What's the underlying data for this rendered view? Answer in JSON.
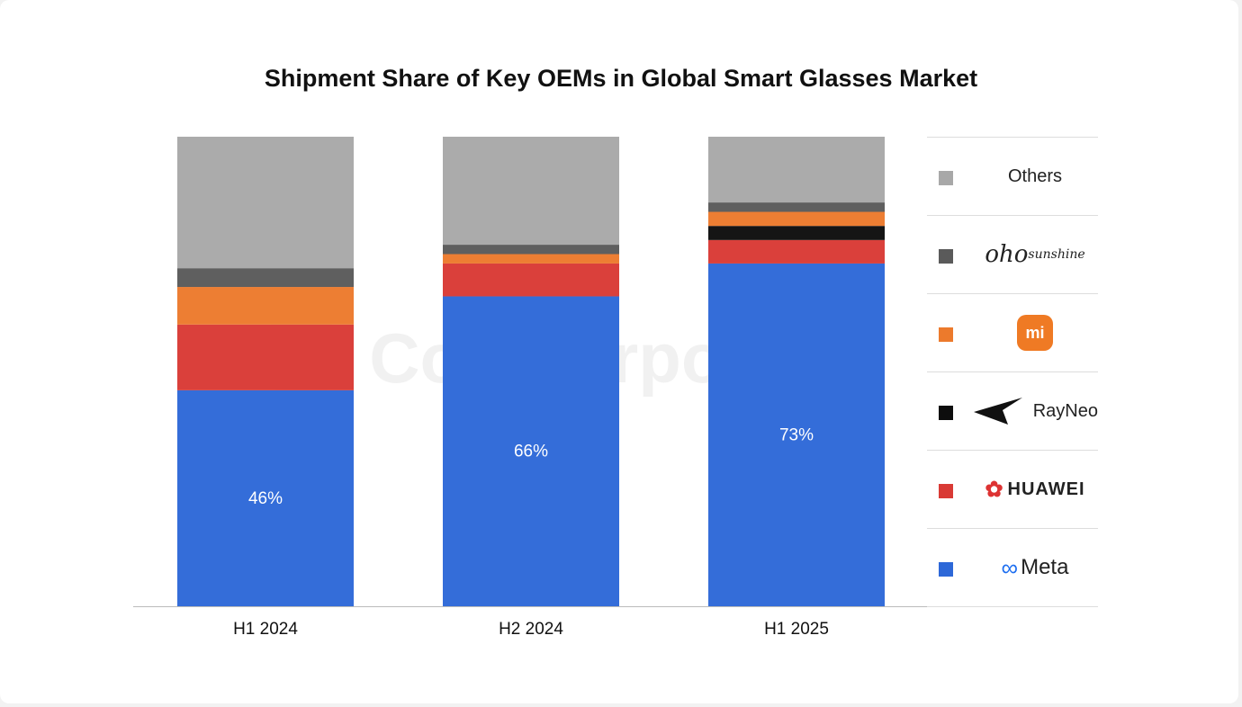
{
  "chart_data": {
    "type": "bar",
    "stacked": true,
    "title": "Shipment Share of Key OEMs in Global Smart Glasses Market",
    "categories": [
      "H1 2024",
      "H2 2024",
      "H1 2025"
    ],
    "ylim": [
      0,
      100
    ],
    "xlabel": "",
    "ylabel": "",
    "grid": false,
    "legend_position": "right",
    "series": [
      {
        "name": "Meta",
        "color": "#2d68d8",
        "values": [
          46,
          66,
          73
        ],
        "labels": [
          "46%",
          "66%",
          "73%"
        ]
      },
      {
        "name": "HUAWEI",
        "color": "#d93a35",
        "values": [
          14,
          7,
          5
        ]
      },
      {
        "name": "RayNeo",
        "color": "#0d0d0d",
        "values": [
          0,
          0,
          3
        ]
      },
      {
        "name": "Xiaomi",
        "color": "#ec7a2c",
        "values": [
          8,
          2,
          3
        ]
      },
      {
        "name": "oho sunshine",
        "color": "#5a5a5a",
        "values": [
          4,
          2,
          2
        ]
      },
      {
        "name": "Others",
        "color": "#a8a8a8",
        "values": [
          28,
          23,
          14
        ]
      }
    ],
    "watermark": "Counterpoint"
  },
  "legend": {
    "others": "Others",
    "oho": "oho",
    "oho_sub": "sunshine",
    "xiaomi": "mi",
    "rayneo": "RayNeo",
    "huawei": "HUAWEI",
    "meta": "Meta"
  }
}
